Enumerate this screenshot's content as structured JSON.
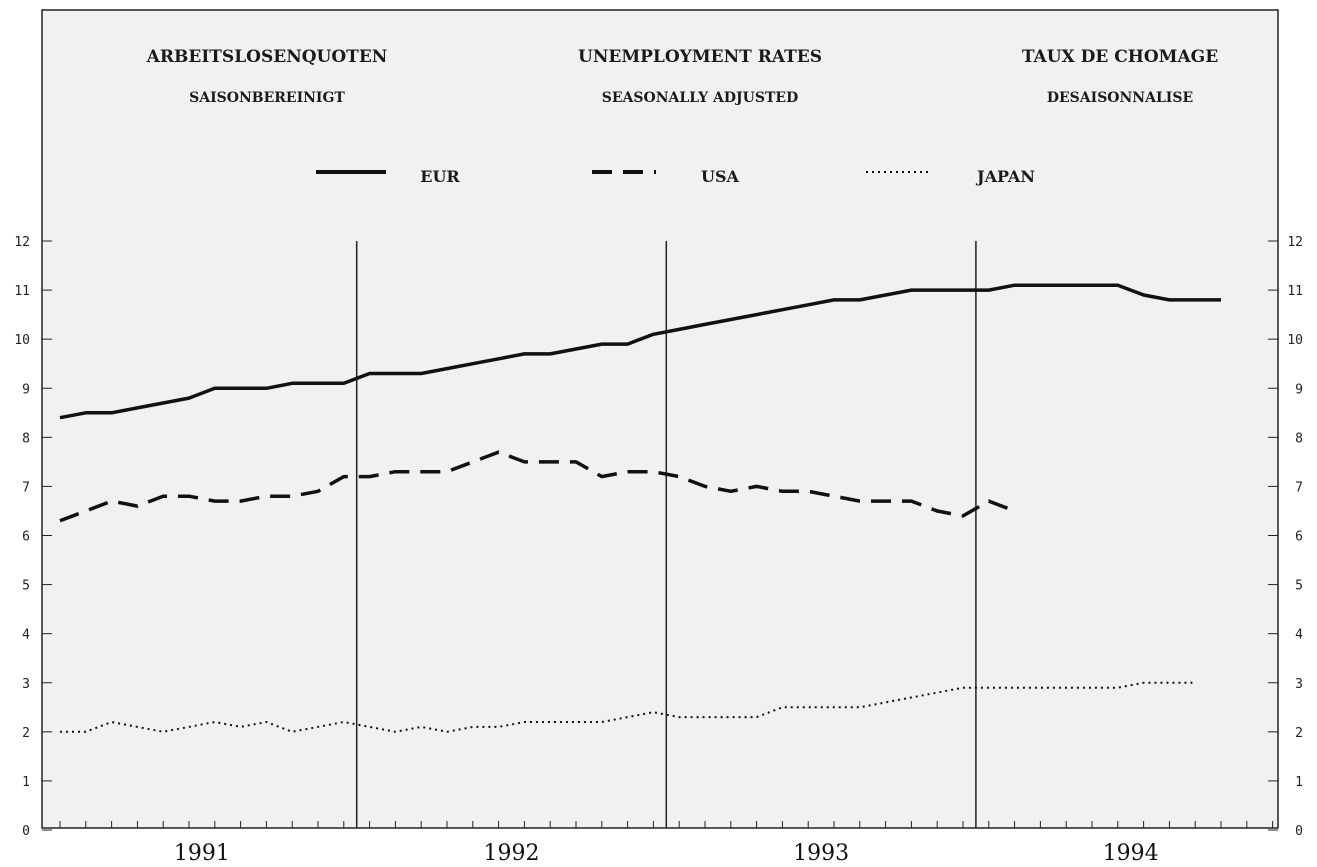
{
  "headings": [
    {
      "title": "ARBEITSLOSENQUOTEN",
      "subtitle": "SAISONBEREINIGT"
    },
    {
      "title": "UNEMPLOYMENT RATES",
      "subtitle": "SEASONALLY ADJUSTED"
    },
    {
      "title": "TAUX DE CHOMAGE",
      "subtitle": "DESAISONNALISE"
    }
  ],
  "chart_data": {
    "type": "line",
    "x_unit": "month",
    "x_start": "1991-01",
    "x_end": "1994-12",
    "year_labels": [
      "1991",
      "1992",
      "1993",
      "1994"
    ],
    "ylim": [
      0,
      12
    ],
    "yticks": [
      "0",
      "1",
      "2",
      "3",
      "4",
      "5",
      "6",
      "7",
      "8",
      "9",
      "10",
      "11",
      "12"
    ],
    "grid": false,
    "legend_position": "top-center",
    "series": [
      {
        "name": "EUR",
        "style": "solid",
        "color": "#111111",
        "values": [
          8.4,
          8.5,
          8.5,
          8.6,
          8.7,
          8.8,
          9.0,
          9.0,
          9.0,
          9.1,
          9.1,
          9.1,
          9.3,
          9.3,
          9.3,
          9.4,
          9.5,
          9.6,
          9.7,
          9.7,
          9.8,
          9.9,
          9.9,
          10.1,
          10.2,
          10.3,
          10.4,
          10.5,
          10.6,
          10.7,
          10.8,
          10.8,
          10.9,
          11.0,
          11.0,
          11.0,
          11.0,
          11.1,
          11.1,
          11.1,
          11.1,
          11.1,
          10.9,
          10.8,
          10.8,
          10.8
        ]
      },
      {
        "name": "USA",
        "style": "dashed",
        "color": "#111111",
        "values": [
          6.3,
          6.5,
          6.7,
          6.6,
          6.8,
          6.8,
          6.7,
          6.7,
          6.8,
          6.8,
          6.9,
          7.2,
          7.2,
          7.3,
          7.3,
          7.3,
          7.5,
          7.7,
          7.5,
          7.5,
          7.5,
          7.2,
          7.3,
          7.3,
          7.2,
          7.0,
          6.9,
          7.0,
          6.9,
          6.9,
          6.8,
          6.7,
          6.7,
          6.7,
          6.5,
          6.4,
          6.7,
          6.5
        ]
      },
      {
        "name": "JAPAN",
        "style": "dotted",
        "color": "#111111",
        "values": [
          2.0,
          2.0,
          2.2,
          2.1,
          2.0,
          2.1,
          2.2,
          2.1,
          2.2,
          2.0,
          2.1,
          2.2,
          2.1,
          2.0,
          2.1,
          2.0,
          2.1,
          2.1,
          2.2,
          2.2,
          2.2,
          2.2,
          2.3,
          2.4,
          2.3,
          2.3,
          2.3,
          2.3,
          2.5,
          2.5,
          2.5,
          2.5,
          2.6,
          2.7,
          2.8,
          2.9,
          2.9,
          2.9,
          2.9,
          2.9,
          2.9,
          2.9,
          3.0,
          3.0,
          3.0
        ]
      }
    ]
  }
}
